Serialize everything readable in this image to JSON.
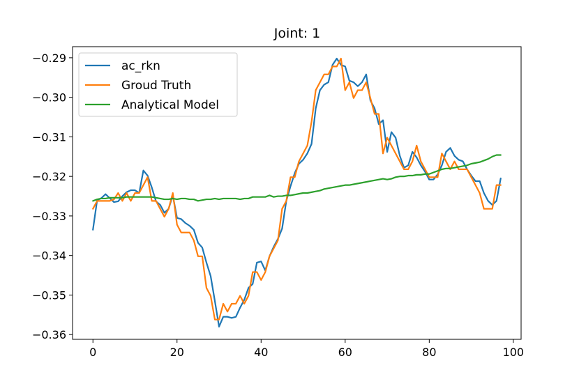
{
  "chart_data": {
    "type": "line",
    "title": "Joint: 1",
    "xlabel": "",
    "ylabel": "",
    "xlim": [
      -4.85,
      101.85
    ],
    "ylim": [
      -0.3612,
      -0.2872
    ],
    "xticks": [
      0,
      20,
      40,
      60,
      80,
      100
    ],
    "xtick_labels": [
      "0",
      "20",
      "40",
      "60",
      "80",
      "100"
    ],
    "yticks": [
      -0.36,
      -0.35,
      -0.34,
      -0.33,
      -0.32,
      -0.31,
      -0.3,
      -0.29
    ],
    "ytick_labels": [
      "−0.36",
      "−0.35",
      "−0.34",
      "−0.33",
      "−0.32",
      "−0.31",
      "−0.30",
      "−0.29"
    ],
    "grid": false,
    "legend_position": "top-left",
    "series": [
      {
        "name": "ac_rkn",
        "color": "#1f77b4",
        "x": [
          0,
          1,
          2,
          3,
          4,
          5,
          6,
          7,
          8,
          9,
          10,
          11,
          12,
          13,
          14,
          15,
          16,
          17,
          18,
          19,
          20,
          21,
          22,
          23,
          24,
          25,
          26,
          27,
          28,
          29,
          30,
          31,
          32,
          33,
          34,
          35,
          36,
          37,
          38,
          39,
          40,
          41,
          42,
          43,
          44,
          45,
          46,
          47,
          48,
          49,
          50,
          51,
          52,
          53,
          54,
          55,
          56,
          57,
          58,
          59,
          60,
          61,
          62,
          63,
          64,
          65,
          66,
          67,
          68,
          69,
          70,
          71,
          72,
          73,
          74,
          75,
          76,
          77,
          78,
          79,
          80,
          81,
          82,
          83,
          84,
          85,
          86,
          87,
          88,
          89,
          90,
          91,
          92,
          93,
          94,
          95,
          96,
          97
        ],
        "y": [
          -0.3335,
          -0.326,
          -0.3255,
          -0.3245,
          -0.3255,
          -0.3265,
          -0.3263,
          -0.325,
          -0.324,
          -0.3235,
          -0.3235,
          -0.3242,
          -0.3185,
          -0.3198,
          -0.3228,
          -0.3263,
          -0.3272,
          -0.3292,
          -0.3282,
          -0.3248,
          -0.3305,
          -0.3308,
          -0.3318,
          -0.3325,
          -0.3335,
          -0.3368,
          -0.338,
          -0.3418,
          -0.3452,
          -0.3515,
          -0.358,
          -0.3555,
          -0.3555,
          -0.3558,
          -0.3555,
          -0.3532,
          -0.3512,
          -0.3482,
          -0.3472,
          -0.3418,
          -0.3415,
          -0.3438,
          -0.3402,
          -0.3378,
          -0.3358,
          -0.3332,
          -0.3262,
          -0.3225,
          -0.3192,
          -0.3168,
          -0.3158,
          -0.3142,
          -0.3118,
          -0.3028,
          -0.2982,
          -0.2968,
          -0.2962,
          -0.2918,
          -0.2902,
          -0.2918,
          -0.2922,
          -0.2958,
          -0.2962,
          -0.2972,
          -0.2962,
          -0.2942,
          -0.3008,
          -0.3028,
          -0.3068,
          -0.3058,
          -0.3138,
          -0.3088,
          -0.3102,
          -0.3148,
          -0.3178,
          -0.3172,
          -0.3138,
          -0.3152,
          -0.3172,
          -0.3188,
          -0.3208,
          -0.3208,
          -0.3195,
          -0.3172,
          -0.3138,
          -0.3128,
          -0.3148,
          -0.3158,
          -0.3162,
          -0.3182,
          -0.3198,
          -0.3212,
          -0.3212,
          -0.3242,
          -0.3262,
          -0.3272,
          -0.3262,
          -0.3205
        ]
      },
      {
        "name": "Groud Truth",
        "color": "#ff7f0e",
        "x": [
          0,
          1,
          2,
          3,
          4,
          5,
          6,
          7,
          8,
          9,
          10,
          11,
          12,
          13,
          14,
          15,
          16,
          17,
          18,
          19,
          20,
          21,
          22,
          23,
          24,
          25,
          26,
          27,
          28,
          29,
          30,
          31,
          32,
          33,
          34,
          35,
          36,
          37,
          38,
          39,
          40,
          41,
          42,
          43,
          44,
          45,
          46,
          47,
          48,
          49,
          50,
          51,
          52,
          53,
          54,
          55,
          56,
          57,
          58,
          59,
          60,
          61,
          62,
          63,
          64,
          65,
          66,
          67,
          68,
          69,
          70,
          71,
          72,
          73,
          74,
          75,
          76,
          77,
          78,
          79,
          80,
          81,
          82,
          83,
          84,
          85,
          86,
          87,
          88,
          89,
          90,
          91,
          92,
          93,
          94,
          95,
          96,
          97
        ],
        "y": [
          -0.3282,
          -0.3262,
          -0.3262,
          -0.3262,
          -0.3262,
          -0.3258,
          -0.3242,
          -0.3262,
          -0.3242,
          -0.3262,
          -0.3242,
          -0.3242,
          -0.3222,
          -0.3202,
          -0.3262,
          -0.3262,
          -0.3282,
          -0.3302,
          -0.3282,
          -0.3242,
          -0.3322,
          -0.3342,
          -0.3342,
          -0.3342,
          -0.3362,
          -0.3402,
          -0.3402,
          -0.3482,
          -0.3502,
          -0.3562,
          -0.3562,
          -0.3522,
          -0.3542,
          -0.3522,
          -0.3522,
          -0.3502,
          -0.3522,
          -0.3502,
          -0.3442,
          -0.3442,
          -0.3462,
          -0.3442,
          -0.3402,
          -0.3382,
          -0.3362,
          -0.3282,
          -0.3262,
          -0.3202,
          -0.3202,
          -0.3162,
          -0.3142,
          -0.3122,
          -0.3062,
          -0.2982,
          -0.2962,
          -0.2942,
          -0.2942,
          -0.2922,
          -0.2922,
          -0.2902,
          -0.2982,
          -0.2962,
          -0.3002,
          -0.2982,
          -0.2982,
          -0.2962,
          -0.3002,
          -0.3042,
          -0.3042,
          -0.3142,
          -0.3102,
          -0.3122,
          -0.3142,
          -0.3162,
          -0.3182,
          -0.3182,
          -0.3162,
          -0.3122,
          -0.3162,
          -0.3182,
          -0.3202,
          -0.3202,
          -0.3202,
          -0.3142,
          -0.3162,
          -0.3182,
          -0.3162,
          -0.3182,
          -0.3182,
          -0.3182,
          -0.3202,
          -0.3222,
          -0.3242,
          -0.3282,
          -0.3282,
          -0.3282,
          -0.3222,
          -0.3222
        ]
      },
      {
        "name": "Analytical Model",
        "color": "#2ca02c",
        "x": [
          0,
          1,
          2,
          3,
          4,
          5,
          6,
          7,
          8,
          9,
          10,
          11,
          12,
          13,
          14,
          15,
          16,
          17,
          18,
          19,
          20,
          21,
          22,
          23,
          24,
          25,
          26,
          27,
          28,
          29,
          30,
          31,
          32,
          33,
          34,
          35,
          36,
          37,
          38,
          39,
          40,
          41,
          42,
          43,
          44,
          45,
          46,
          47,
          48,
          49,
          50,
          51,
          52,
          53,
          54,
          55,
          56,
          57,
          58,
          59,
          60,
          61,
          62,
          63,
          64,
          65,
          66,
          67,
          68,
          69,
          70,
          71,
          72,
          73,
          74,
          75,
          76,
          77,
          78,
          79,
          80,
          81,
          82,
          83,
          84,
          85,
          86,
          87,
          88,
          89,
          90,
          91,
          92,
          93,
          94,
          95,
          96,
          97
        ],
        "y": [
          -0.3262,
          -0.3258,
          -0.3256,
          -0.3256,
          -0.3254,
          -0.3254,
          -0.3254,
          -0.3254,
          -0.3252,
          -0.3252,
          -0.3252,
          -0.3252,
          -0.3252,
          -0.3252,
          -0.3252,
          -0.3254,
          -0.3256,
          -0.3258,
          -0.3258,
          -0.3256,
          -0.3258,
          -0.3256,
          -0.3256,
          -0.3258,
          -0.3258,
          -0.3262,
          -0.326,
          -0.3258,
          -0.3258,
          -0.3256,
          -0.3258,
          -0.3256,
          -0.3256,
          -0.3256,
          -0.3256,
          -0.3258,
          -0.3256,
          -0.3256,
          -0.3252,
          -0.3252,
          -0.3252,
          -0.3252,
          -0.3248,
          -0.3252,
          -0.325,
          -0.325,
          -0.3248,
          -0.3248,
          -0.3246,
          -0.3244,
          -0.3242,
          -0.3242,
          -0.324,
          -0.3238,
          -0.3236,
          -0.3232,
          -0.323,
          -0.3228,
          -0.3226,
          -0.3224,
          -0.3222,
          -0.3222,
          -0.322,
          -0.3218,
          -0.3216,
          -0.3214,
          -0.3212,
          -0.321,
          -0.3208,
          -0.3206,
          -0.3208,
          -0.3206,
          -0.3202,
          -0.32,
          -0.32,
          -0.3198,
          -0.3198,
          -0.3196,
          -0.3196,
          -0.3194,
          -0.3194,
          -0.319,
          -0.3186,
          -0.3182,
          -0.318,
          -0.318,
          -0.3178,
          -0.3176,
          -0.3174,
          -0.3172,
          -0.3168,
          -0.3166,
          -0.3164,
          -0.316,
          -0.3156,
          -0.315,
          -0.3146,
          -0.3146
        ]
      }
    ]
  }
}
